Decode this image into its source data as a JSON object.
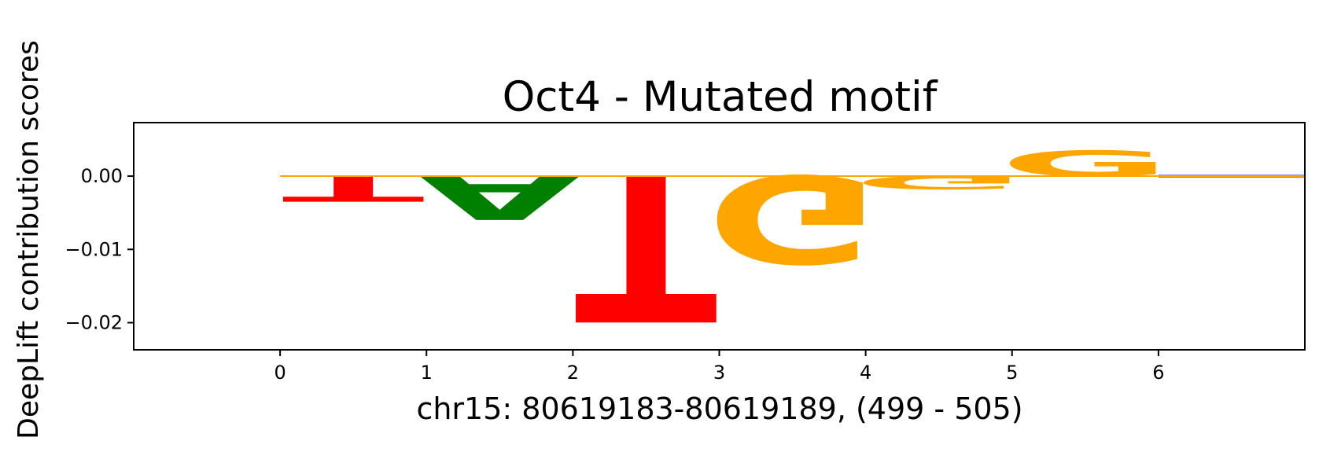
{
  "chart_data": {
    "type": "sequence-logo",
    "title": "Oct4 - Mutated motif",
    "xlabel": "chr15: 80619183-80619189, (499 - 505)",
    "ylabel": "DeepLift contribution scores",
    "xlim": [
      -1,
      7
    ],
    "ylim": [
      -0.0237,
      0.0073
    ],
    "xticks": [
      0,
      1,
      2,
      3,
      4,
      5,
      6
    ],
    "yticks": [
      0.0,
      -0.01,
      -0.02
    ],
    "ytick_labels": [
      "0.00",
      "−0.01",
      "−0.02"
    ],
    "positions": [
      {
        "pos": 0,
        "base": "T",
        "score": -0.0035
      },
      {
        "pos": 1,
        "base": "A",
        "score": -0.006
      },
      {
        "pos": 2,
        "base": "T",
        "score": -0.02
      },
      {
        "pos": 3,
        "base": "G",
        "score": -0.012
      },
      {
        "pos": 4,
        "base": "G",
        "score": -0.0018
      },
      {
        "pos": 5,
        "base": "G",
        "score": 0.0035
      },
      {
        "pos": 6,
        "base": "C",
        "score": 0.0
      }
    ],
    "colors": {
      "A": "#008000",
      "C": "#0000ff",
      "G": "#ffa500",
      "T": "#ff0000"
    }
  }
}
